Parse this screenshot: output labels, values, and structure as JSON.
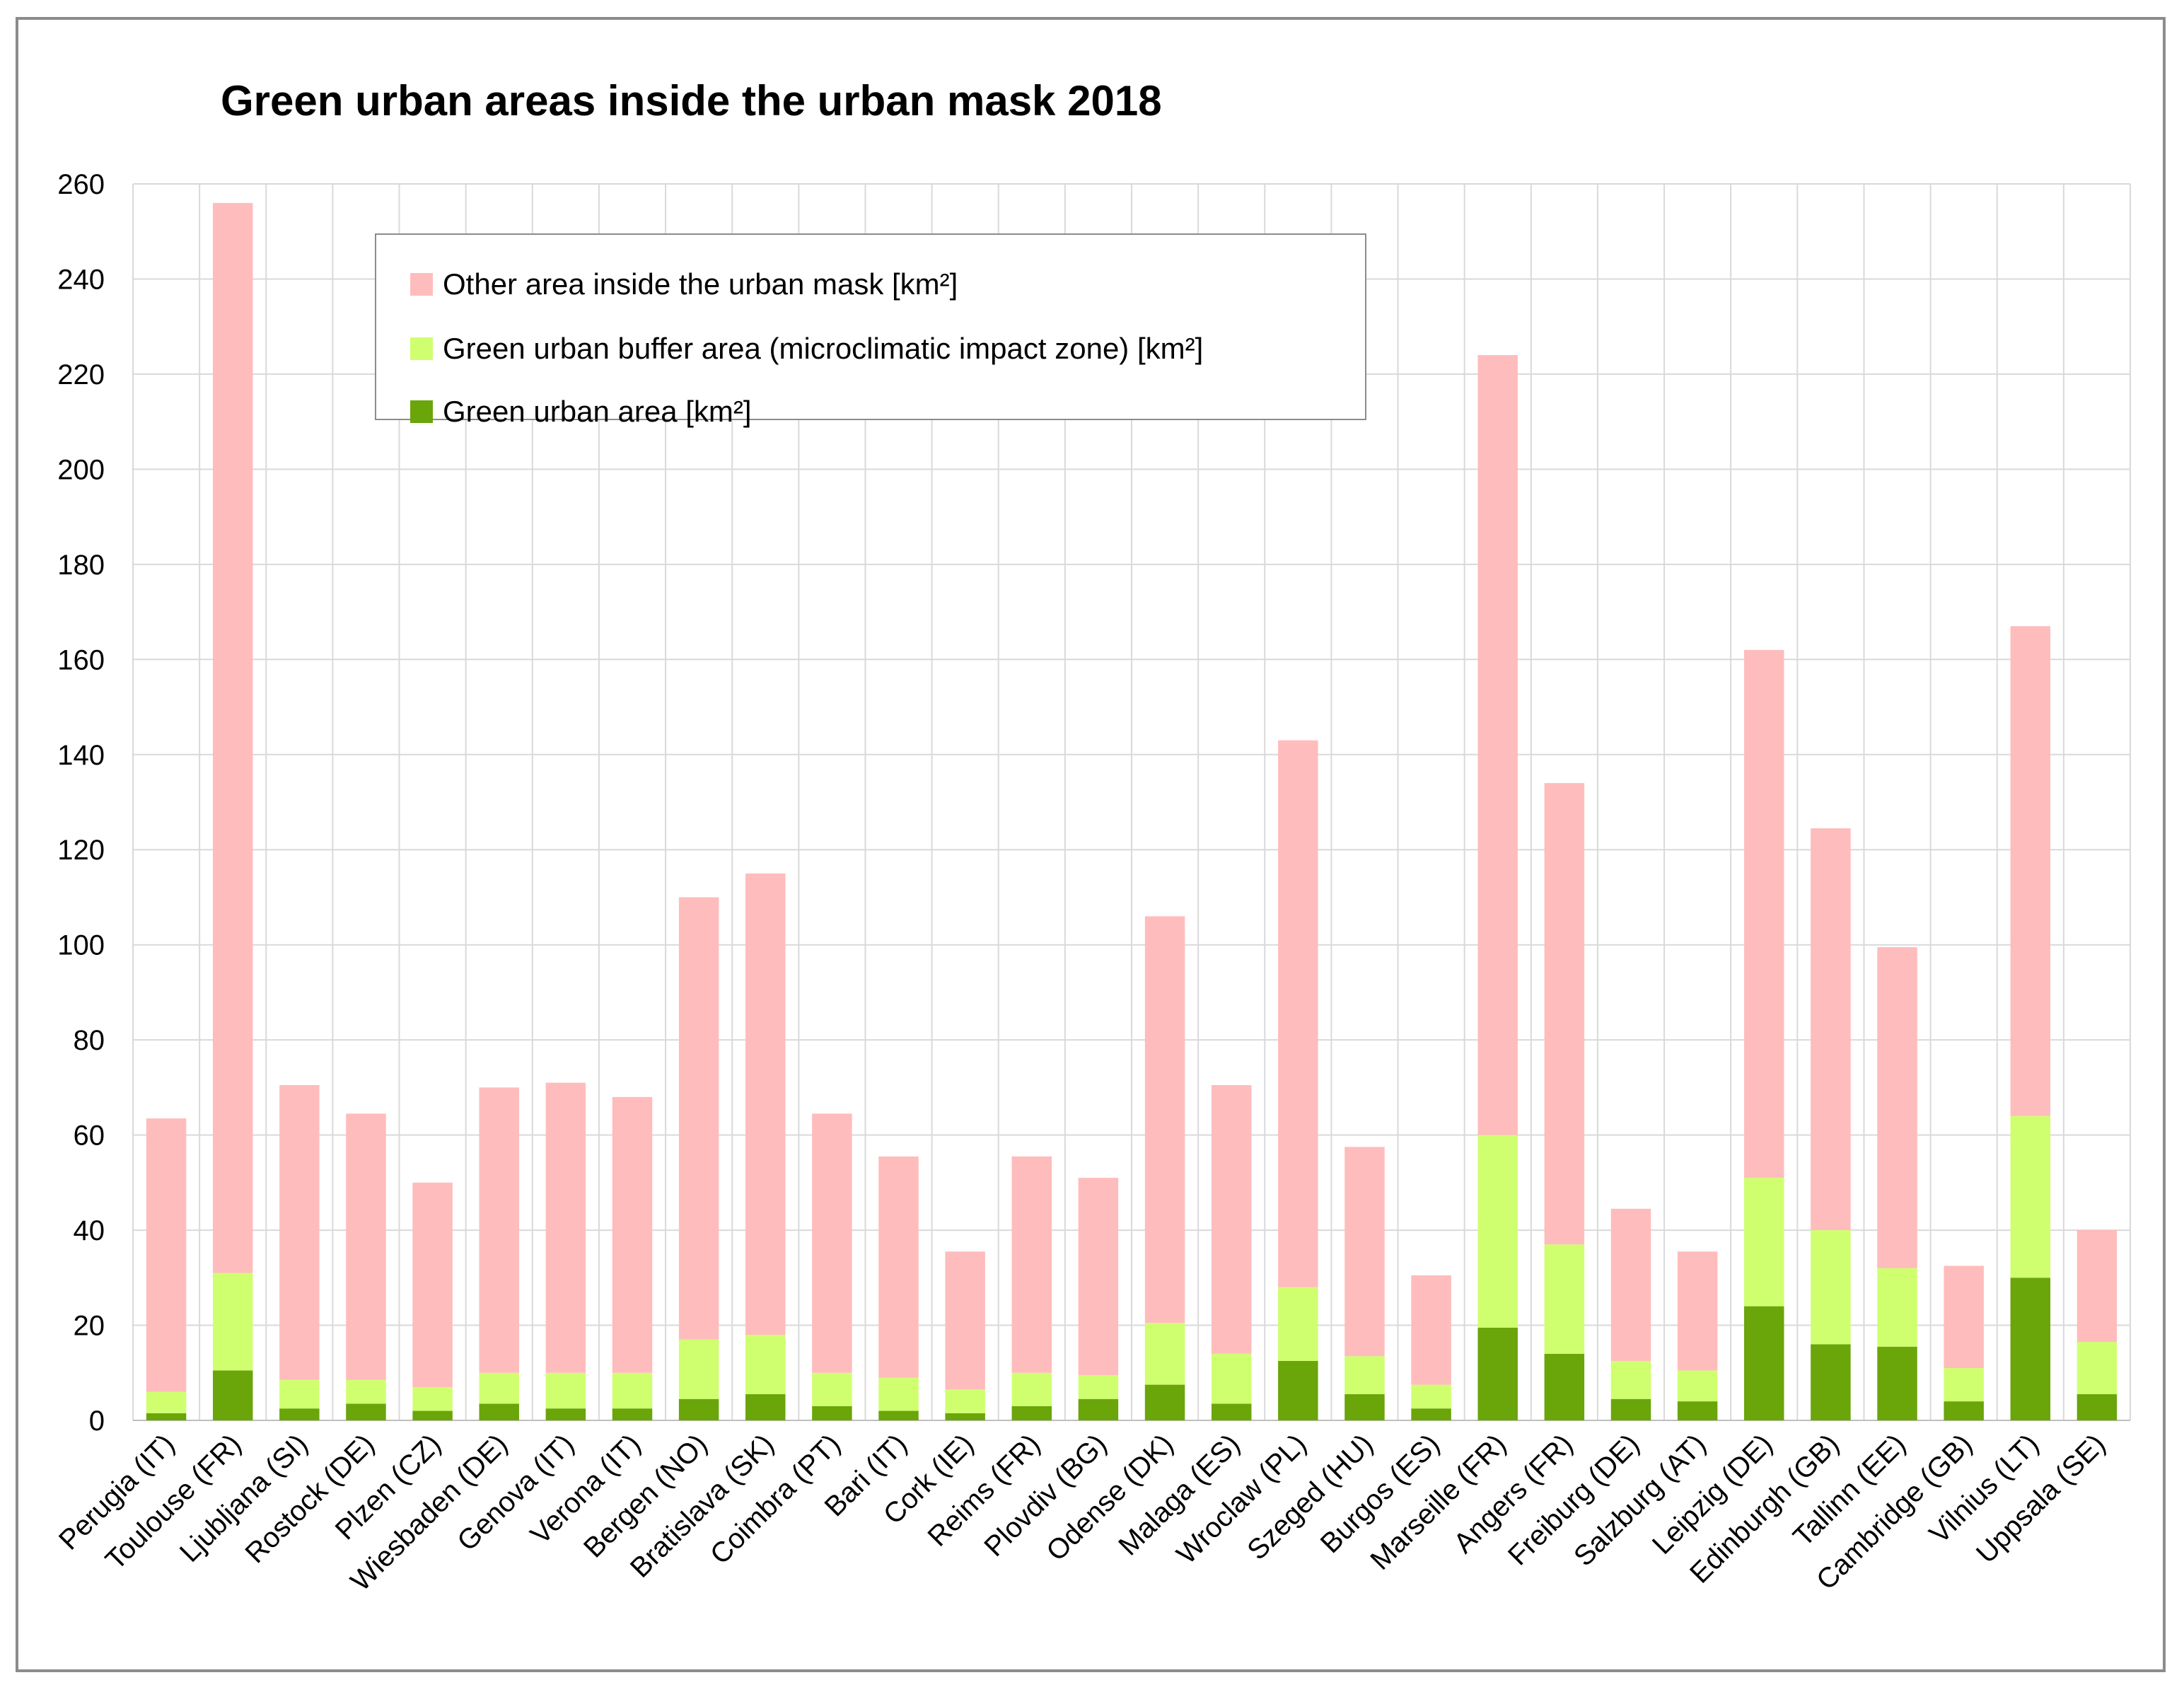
{
  "chart_data": {
    "type": "bar",
    "stacked": true,
    "title": "Green urban areas inside the urban mask 2018",
    "xlabel": "",
    "ylabel": "",
    "ylim": [
      0,
      260
    ],
    "yticks": [
      0,
      20,
      40,
      60,
      80,
      100,
      120,
      140,
      160,
      180,
      200,
      220,
      240,
      260
    ],
    "grid": true,
    "legend_position": "top-left",
    "categories": [
      "Perugia (IT)",
      "Toulouse (FR)",
      "Ljubljana (SI)",
      "Rostock (DE)",
      "Plzen (CZ)",
      "Wiesbaden (DE)",
      "Genova (IT)",
      "Verona (IT)",
      "Bergen (NO)",
      "Bratislava (SK)",
      "Coimbra (PT)",
      "Bari (IT)",
      "Cork (IE)",
      "Reims (FR)",
      "Plovdiv (BG)",
      "Odense (DK)",
      "Malaga (ES)",
      "Wroclaw (PL)",
      "Szeged (HU)",
      "Burgos (ES)",
      "Marseille (FR)",
      "Angers (FR)",
      "Freiburg (DE)",
      "Salzburg (AT)",
      "Leipzig (DE)",
      "Edinburgh (GB)",
      "Tallinn (EE)",
      "Cambridge (GB)",
      "Vilnius (LT)",
      "Uppsala (SE)"
    ],
    "series": [
      {
        "name": "Green urban area [km²]",
        "color": "#6aa50a",
        "values": [
          1.5,
          10.5,
          2.5,
          3.5,
          2,
          3.5,
          2.5,
          2.5,
          4.5,
          5.5,
          3,
          2,
          1.5,
          3,
          4.5,
          7.5,
          3.5,
          12.5,
          5.5,
          2.5,
          19.5,
          14,
          4.5,
          4,
          24,
          16,
          15.5,
          4,
          30,
          5.5
        ]
      },
      {
        "name": "Green urban buffer area (microclimatic impact zone) [km²]",
        "color": "#cfff6f",
        "values": [
          4.5,
          20.5,
          6,
          5,
          5,
          6.5,
          7.5,
          7.5,
          12.5,
          12.5,
          7,
          7,
          5,
          7,
          5,
          13,
          10.5,
          15.5,
          8,
          5,
          40.5,
          23,
          8,
          6.5,
          27,
          24,
          16.5,
          7,
          34,
          11
        ]
      },
      {
        "name": "Other area inside the urban mask [km²]",
        "color": "#ffbcbc",
        "values": [
          57.5,
          225,
          62,
          56,
          43,
          60,
          61,
          58,
          93,
          97,
          54.5,
          46.5,
          29,
          45.5,
          41.5,
          85.5,
          56.5,
          115,
          44,
          23,
          164,
          97,
          32,
          25,
          111,
          84.5,
          67.5,
          21.5,
          103,
          23.5
        ]
      }
    ],
    "legend": [
      "Other area inside the urban mask [km²]",
      "Green urban buffer area (microclimatic impact zone) [km²]",
      "Green urban area [km²]"
    ]
  }
}
